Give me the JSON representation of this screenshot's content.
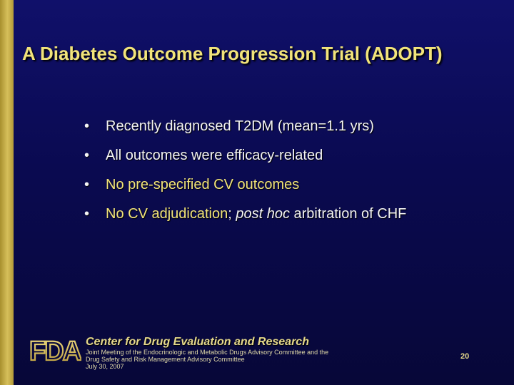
{
  "slide": {
    "title": "A Diabetes Outcome Progression Trial (ADOPT)",
    "bullets": [
      {
        "text": "Recently diagnosed T2DM (mean=1.1 yrs)"
      },
      {
        "text": "All outcomes were efficacy-related"
      },
      {
        "text": "No pre-specified CV outcomes"
      },
      {
        "part1": "No CV adjudication",
        "part2": ";",
        "part3": "post hoc",
        "part4": "arbitration of CHF"
      }
    ],
    "bullet_glyph": "•"
  },
  "footer": {
    "logo_icon": "fda-logo-icon",
    "logo_text": "FDA",
    "center_name": "Center for Drug Evaluation and Research",
    "lines": [
      "Joint Meeting of the Endocrinologic and Metabolic Drugs Advisory Committee and the",
      "Drug Safety and Risk Management Advisory Committee",
      "July 30, 2007"
    ],
    "page_number": "20"
  },
  "colors": {
    "background": "#0b0b55",
    "title": "#f2e47a",
    "accent_bar": "#c9b24a",
    "body_text": "#f4f4f4"
  }
}
